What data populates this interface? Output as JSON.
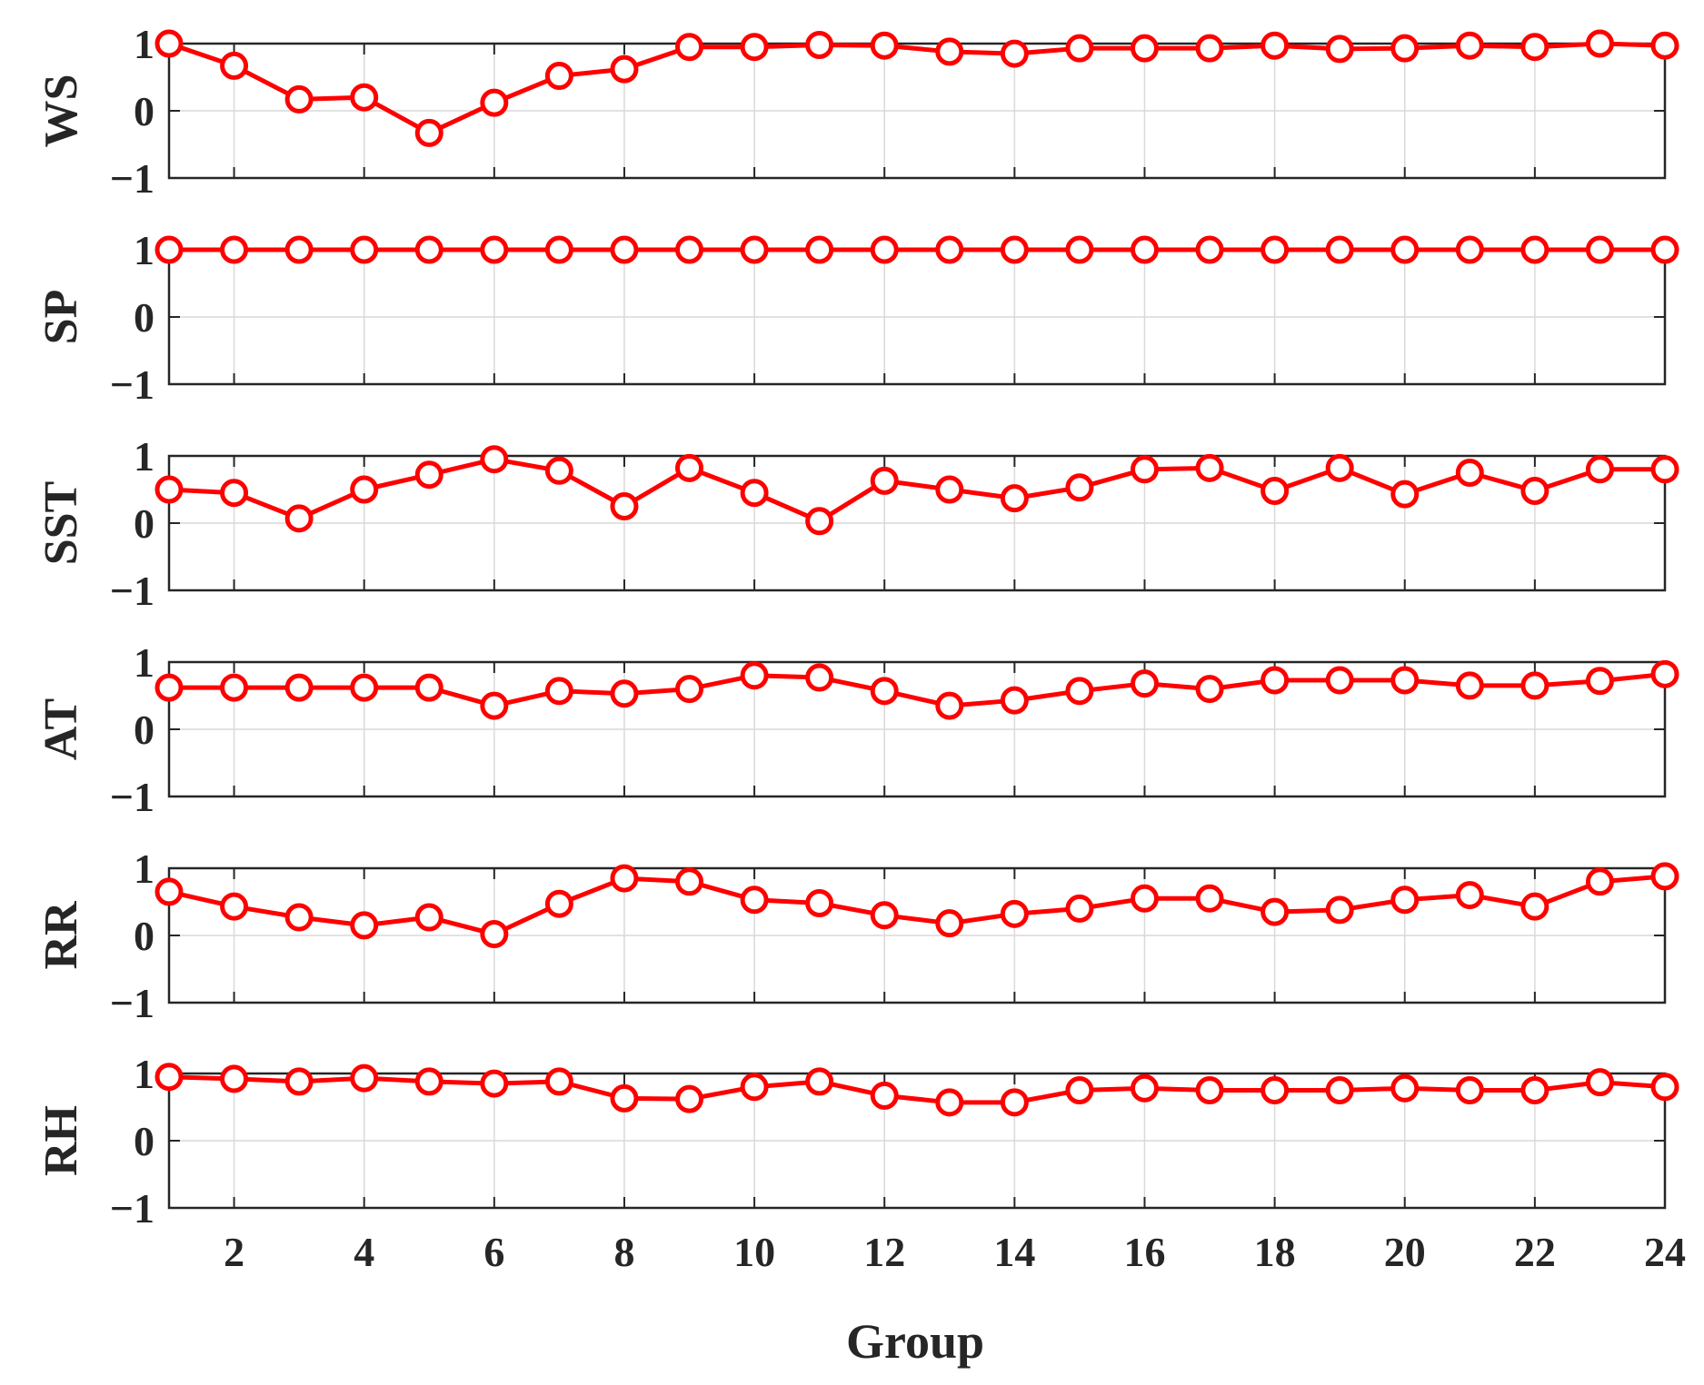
{
  "chart_data": {
    "type": "line",
    "xlabel": "Group",
    "x": [
      1,
      2,
      3,
      4,
      5,
      6,
      7,
      8,
      9,
      10,
      11,
      12,
      13,
      14,
      15,
      16,
      17,
      18,
      19,
      20,
      21,
      22,
      23,
      24
    ],
    "xticks": [
      "2",
      "4",
      "6",
      "8",
      "10",
      "12",
      "14",
      "16",
      "18",
      "20",
      "22",
      "24"
    ],
    "xlim": [
      1,
      24
    ],
    "ylim": [
      -1,
      1
    ],
    "yticks": [
      "−1",
      "0",
      "1"
    ],
    "grid": true,
    "line_color": "#ff0000",
    "marker": "circle",
    "panels": [
      {
        "ylabel": "WS",
        "values": [
          1.0,
          0.67,
          0.17,
          0.2,
          -0.33,
          0.12,
          0.52,
          0.62,
          0.95,
          0.95,
          0.98,
          0.97,
          0.88,
          0.85,
          0.93,
          0.93,
          0.93,
          0.97,
          0.92,
          0.93,
          0.97,
          0.95,
          1.0,
          0.97
        ]
      },
      {
        "ylabel": "SP",
        "values": [
          1.0,
          1.0,
          1.0,
          1.0,
          1.0,
          1.0,
          1.0,
          1.0,
          1.0,
          1.0,
          1.0,
          1.0,
          1.0,
          1.0,
          1.0,
          1.0,
          1.0,
          1.0,
          1.0,
          1.0,
          1.0,
          1.0,
          1.0,
          1.0
        ]
      },
      {
        "ylabel": "SST",
        "values": [
          0.5,
          0.45,
          0.07,
          0.5,
          0.72,
          0.95,
          0.78,
          0.25,
          0.82,
          0.45,
          0.03,
          0.63,
          0.5,
          0.37,
          0.53,
          0.8,
          0.82,
          0.48,
          0.82,
          0.43,
          0.75,
          0.48,
          0.8,
          0.8
        ]
      },
      {
        "ylabel": "AT",
        "values": [
          0.62,
          0.62,
          0.62,
          0.62,
          0.62,
          0.35,
          0.57,
          0.53,
          0.6,
          0.8,
          0.77,
          0.57,
          0.35,
          0.43,
          0.57,
          0.68,
          0.6,
          0.73,
          0.73,
          0.73,
          0.65,
          0.65,
          0.72,
          0.82
        ]
      },
      {
        "ylabel": "RR",
        "values": [
          0.65,
          0.43,
          0.27,
          0.15,
          0.27,
          0.02,
          0.47,
          0.85,
          0.8,
          0.53,
          0.48,
          0.3,
          0.18,
          0.32,
          0.4,
          0.55,
          0.55,
          0.35,
          0.38,
          0.53,
          0.6,
          0.43,
          0.8,
          0.88
        ]
      },
      {
        "ylabel": "RH",
        "values": [
          0.95,
          0.92,
          0.88,
          0.93,
          0.88,
          0.85,
          0.88,
          0.63,
          0.62,
          0.8,
          0.88,
          0.67,
          0.57,
          0.57,
          0.75,
          0.78,
          0.75,
          0.75,
          0.75,
          0.78,
          0.75,
          0.75,
          0.87,
          0.8
        ]
      }
    ]
  }
}
